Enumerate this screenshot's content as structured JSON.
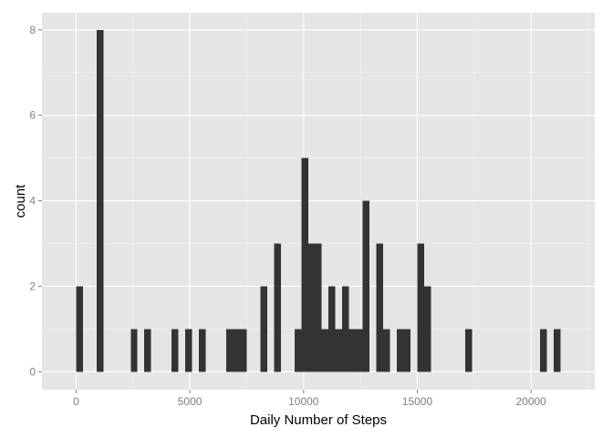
{
  "chart_data": {
    "type": "bar",
    "xlabel": "Daily Number of Steps",
    "ylabel": "count",
    "xlim": [
      -1500,
      22800
    ],
    "ylim": [
      -0.42,
      8.4
    ],
    "x_ticks": [
      0,
      5000,
      10000,
      15000,
      20000
    ],
    "x_tick_labels": [
      "0",
      "5000",
      "10000",
      "15000",
      "20000"
    ],
    "y_ticks": [
      0,
      2,
      4,
      6,
      8
    ],
    "y_tick_labels": [
      "0",
      "2",
      "4",
      "6",
      "8"
    ],
    "grid": true,
    "bin_width": 300,
    "bins": [
      {
        "start": 0,
        "end": 300,
        "count": 2
      },
      {
        "start": 900,
        "end": 1200,
        "count": 8
      },
      {
        "start": 2400,
        "end": 2700,
        "count": 1
      },
      {
        "start": 3000,
        "end": 3300,
        "count": 1
      },
      {
        "start": 4200,
        "end": 4500,
        "count": 1
      },
      {
        "start": 4800,
        "end": 5100,
        "count": 1
      },
      {
        "start": 5400,
        "end": 5700,
        "count": 1
      },
      {
        "start": 6600,
        "end": 6900,
        "count": 1
      },
      {
        "start": 6900,
        "end": 7200,
        "count": 1
      },
      {
        "start": 7200,
        "end": 7500,
        "count": 1
      },
      {
        "start": 8100,
        "end": 8400,
        "count": 2
      },
      {
        "start": 8700,
        "end": 9000,
        "count": 3
      },
      {
        "start": 9600,
        "end": 9900,
        "count": 1
      },
      {
        "start": 9900,
        "end": 10200,
        "count": 5
      },
      {
        "start": 10200,
        "end": 10500,
        "count": 3
      },
      {
        "start": 10500,
        "end": 10800,
        "count": 3
      },
      {
        "start": 10800,
        "end": 11100,
        "count": 1
      },
      {
        "start": 11100,
        "end": 11400,
        "count": 2
      },
      {
        "start": 11400,
        "end": 11700,
        "count": 1
      },
      {
        "start": 11700,
        "end": 12000,
        "count": 2
      },
      {
        "start": 12000,
        "end": 12300,
        "count": 1
      },
      {
        "start": 12300,
        "end": 12600,
        "count": 1
      },
      {
        "start": 12600,
        "end": 12900,
        "count": 4
      },
      {
        "start": 13200,
        "end": 13500,
        "count": 3
      },
      {
        "start": 13500,
        "end": 13800,
        "count": 1
      },
      {
        "start": 14100,
        "end": 14400,
        "count": 1
      },
      {
        "start": 14400,
        "end": 14700,
        "count": 1
      },
      {
        "start": 15000,
        "end": 15300,
        "count": 3
      },
      {
        "start": 15300,
        "end": 15600,
        "count": 2
      },
      {
        "start": 17100,
        "end": 17400,
        "count": 1
      },
      {
        "start": 20400,
        "end": 20700,
        "count": 1
      },
      {
        "start": 21000,
        "end": 21300,
        "count": 1
      }
    ],
    "colors": {
      "panel": "#e5e5e5",
      "grid_major": "#ffffff",
      "grid_minor": "#f2f2f2",
      "bar": "#333333"
    }
  }
}
